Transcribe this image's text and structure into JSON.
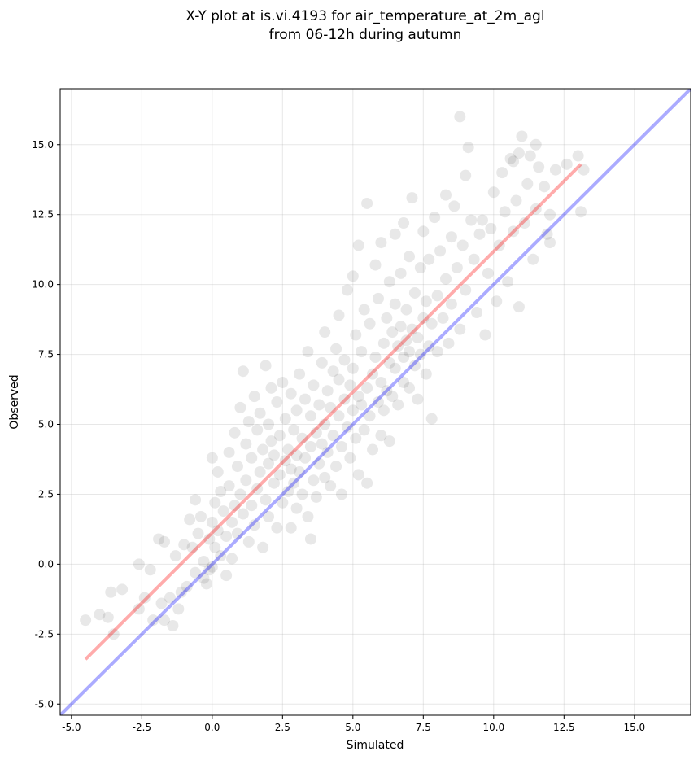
{
  "chart_data": {
    "type": "scatter",
    "title_line1": "X-Y plot at is.vi.4193 for air_temperature_at_2m_agl",
    "title_line2": "from 06-12h during autumn",
    "xlabel": "Simulated",
    "ylabel": "Observed",
    "xlim": [
      -5.4,
      17.0
    ],
    "ylim": [
      -5.4,
      17.0
    ],
    "xticks": [
      -5.0,
      -2.5,
      0.0,
      2.5,
      5.0,
      7.5,
      10.0,
      12.5,
      15.0
    ],
    "xtick_labels": [
      "-5.0",
      "-2.5",
      "0.0",
      "2.5",
      "5.0",
      "7.5",
      "10.0",
      "12.5",
      "15.0"
    ],
    "yticks": [
      -5.0,
      -2.5,
      0.0,
      2.5,
      5.0,
      7.5,
      10.0,
      12.5,
      15.0
    ],
    "ytick_labels": [
      "-5.0",
      "-2.5",
      "0.0",
      "2.5",
      "5.0",
      "7.5",
      "10.0",
      "12.5",
      "15.0"
    ],
    "grid": true,
    "point_color": "#000000",
    "point_alpha": 0.09,
    "lines": [
      {
        "kind": "one-to-one",
        "color": "#0000ff",
        "alpha": 0.33,
        "x": [
          -5.4,
          17.0
        ],
        "y": [
          -5.4,
          17.0
        ]
      },
      {
        "kind": "regression",
        "color": "#ff0000",
        "alpha": 0.33,
        "x": [
          -4.5,
          13.1
        ],
        "y": [
          -3.4,
          14.3
        ]
      }
    ],
    "points": [
      [
        -4.5,
        -2.0
      ],
      [
        -4.0,
        -1.8
      ],
      [
        -3.7,
        -1.9
      ],
      [
        -3.6,
        -1.0
      ],
      [
        -3.5,
        -2.5
      ],
      [
        -3.2,
        -0.9
      ],
      [
        -2.6,
        0.0
      ],
      [
        -2.6,
        -1.6
      ],
      [
        -2.4,
        -1.2
      ],
      [
        -2.2,
        -0.2
      ],
      [
        -2.1,
        -2.0
      ],
      [
        -1.9,
        0.9
      ],
      [
        -1.8,
        -1.4
      ],
      [
        -1.7,
        0.8
      ],
      [
        -1.7,
        -2.0
      ],
      [
        -1.5,
        -1.2
      ],
      [
        -1.4,
        -2.2
      ],
      [
        -1.3,
        0.3
      ],
      [
        -1.2,
        -1.6
      ],
      [
        -1.1,
        -1.0
      ],
      [
        -1.0,
        0.7
      ],
      [
        -0.9,
        -0.8
      ],
      [
        -0.8,
        1.6
      ],
      [
        -0.7,
        0.6
      ],
      [
        -0.6,
        2.3
      ],
      [
        -0.6,
        -0.3
      ],
      [
        -0.5,
        1.1
      ],
      [
        -0.4,
        1.7
      ],
      [
        -0.3,
        0.1
      ],
      [
        -0.3,
        -0.5
      ],
      [
        -0.2,
        -0.7
      ],
      [
        -0.1,
        0.9
      ],
      [
        -0.1,
        -0.2
      ],
      [
        0.0,
        3.8
      ],
      [
        0.0,
        1.5
      ],
      [
        0.0,
        -0.1
      ],
      [
        0.1,
        2.2
      ],
      [
        0.1,
        0.6
      ],
      [
        0.2,
        1.2
      ],
      [
        0.2,
        3.3
      ],
      [
        0.3,
        0.3
      ],
      [
        0.3,
        2.6
      ],
      [
        0.4,
        1.9
      ],
      [
        0.5,
        1.0
      ],
      [
        0.5,
        -0.4
      ],
      [
        0.6,
        4.0
      ],
      [
        0.6,
        2.8
      ],
      [
        0.7,
        1.5
      ],
      [
        0.7,
        0.2
      ],
      [
        0.8,
        2.1
      ],
      [
        0.8,
        4.7
      ],
      [
        0.9,
        3.5
      ],
      [
        0.9,
        1.1
      ],
      [
        1.0,
        2.5
      ],
      [
        1.0,
        5.6
      ],
      [
        1.1,
        6.9
      ],
      [
        1.1,
        1.8
      ],
      [
        1.2,
        3.0
      ],
      [
        1.2,
        4.3
      ],
      [
        1.3,
        0.8
      ],
      [
        1.3,
        5.1
      ],
      [
        1.4,
        2.1
      ],
      [
        1.4,
        3.8
      ],
      [
        1.5,
        6.0
      ],
      [
        1.5,
        1.4
      ],
      [
        1.6,
        4.8
      ],
      [
        1.6,
        2.7
      ],
      [
        1.7,
        3.3
      ],
      [
        1.7,
        5.4
      ],
      [
        1.8,
        0.6
      ],
      [
        1.8,
        4.1
      ],
      [
        1.9,
        2.3
      ],
      [
        1.9,
        7.1
      ],
      [
        2.0,
        3.6
      ],
      [
        2.0,
        5.0
      ],
      [
        2.0,
        1.7
      ],
      [
        2.1,
        4.4
      ],
      [
        2.1,
        6.3
      ],
      [
        2.2,
        2.9
      ],
      [
        2.2,
        3.9
      ],
      [
        2.3,
        5.8
      ],
      [
        2.3,
        1.3
      ],
      [
        2.4,
        4.6
      ],
      [
        2.4,
        3.2
      ],
      [
        2.5,
        6.5
      ],
      [
        2.5,
        2.2
      ],
      [
        2.6,
        3.7
      ],
      [
        2.6,
        5.2
      ],
      [
        2.7,
        4.1
      ],
      [
        2.7,
        2.6
      ],
      [
        2.8,
        3.4
      ],
      [
        2.8,
        6.1
      ],
      [
        2.8,
        1.3
      ],
      [
        2.9,
        4.8
      ],
      [
        2.9,
        2.9
      ],
      [
        3.0,
        3.9
      ],
      [
        3.0,
        5.5
      ],
      [
        3.0,
        2.0
      ],
      [
        3.1,
        6.8
      ],
      [
        3.1,
        3.3
      ],
      [
        3.2,
        4.5
      ],
      [
        3.2,
        2.5
      ],
      [
        3.3,
        5.9
      ],
      [
        3.3,
        3.8
      ],
      [
        3.4,
        7.6
      ],
      [
        3.4,
        1.7
      ],
      [
        3.5,
        4.2
      ],
      [
        3.5,
        0.9
      ],
      [
        3.5,
        5.3
      ],
      [
        3.6,
        3.0
      ],
      [
        3.6,
        6.4
      ],
      [
        3.7,
        4.7
      ],
      [
        3.7,
        2.4
      ],
      [
        3.8,
        5.7
      ],
      [
        3.8,
        3.6
      ],
      [
        3.9,
        7.2
      ],
      [
        3.9,
        4.3
      ],
      [
        4.0,
        5.0
      ],
      [
        4.0,
        3.1
      ],
      [
        4.0,
        8.3
      ],
      [
        4.1,
        6.2
      ],
      [
        4.1,
        4.0
      ],
      [
        4.2,
        5.6
      ],
      [
        4.2,
        2.8
      ],
      [
        4.3,
        6.9
      ],
      [
        4.3,
        4.6
      ],
      [
        4.4,
        7.7
      ],
      [
        4.4,
        3.5
      ],
      [
        4.5,
        5.3
      ],
      [
        4.5,
        6.6
      ],
      [
        4.5,
        8.9
      ],
      [
        4.6,
        4.2
      ],
      [
        4.6,
        2.5
      ],
      [
        4.7,
        5.9
      ],
      [
        4.7,
        7.3
      ],
      [
        4.8,
        4.9
      ],
      [
        4.8,
        9.8
      ],
      [
        4.9,
        6.4
      ],
      [
        4.9,
        3.8
      ],
      [
        5.0,
        5.5
      ],
      [
        5.0,
        7.0
      ],
      [
        5.0,
        10.3
      ],
      [
        5.1,
        4.5
      ],
      [
        5.1,
        8.2
      ],
      [
        5.2,
        6.0
      ],
      [
        5.2,
        3.2
      ],
      [
        5.2,
        11.4
      ],
      [
        5.3,
        5.7
      ],
      [
        5.3,
        7.6
      ],
      [
        5.4,
        4.8
      ],
      [
        5.4,
        9.1
      ],
      [
        5.5,
        6.3
      ],
      [
        5.5,
        12.9
      ],
      [
        5.5,
        2.9
      ],
      [
        5.6,
        5.3
      ],
      [
        5.6,
        8.6
      ],
      [
        5.7,
        6.8
      ],
      [
        5.7,
        4.1
      ],
      [
        5.8,
        7.4
      ],
      [
        5.8,
        10.7
      ],
      [
        5.9,
        5.8
      ],
      [
        5.9,
        9.5
      ],
      [
        6.0,
        6.5
      ],
      [
        6.0,
        4.6
      ],
      [
        6.0,
        11.5
      ],
      [
        6.1,
        7.9
      ],
      [
        6.1,
        5.5
      ],
      [
        6.2,
        8.8
      ],
      [
        6.2,
        6.2
      ],
      [
        6.3,
        7.2
      ],
      [
        6.3,
        10.1
      ],
      [
        6.3,
        4.4
      ],
      [
        6.4,
        8.3
      ],
      [
        6.4,
        6.0
      ],
      [
        6.5,
        9.3
      ],
      [
        6.5,
        11.8
      ],
      [
        6.5,
        7.0
      ],
      [
        6.6,
        7.8
      ],
      [
        6.6,
        5.7
      ],
      [
        6.7,
        8.5
      ],
      [
        6.7,
        10.4
      ],
      [
        6.8,
        7.4
      ],
      [
        6.8,
        6.5
      ],
      [
        6.8,
        12.2
      ],
      [
        6.9,
        8.0
      ],
      [
        6.9,
        9.1
      ],
      [
        7.0,
        7.6
      ],
      [
        7.0,
        6.3
      ],
      [
        7.0,
        11.0
      ],
      [
        7.1,
        8.4
      ],
      [
        7.1,
        13.1
      ],
      [
        7.2,
        7.1
      ],
      [
        7.2,
        9.7
      ],
      [
        7.3,
        8.1
      ],
      [
        7.3,
        5.9
      ],
      [
        7.4,
        10.6
      ],
      [
        7.4,
        7.5
      ],
      [
        7.5,
        8.8
      ],
      [
        7.5,
        11.9
      ],
      [
        7.6,
        6.8
      ],
      [
        7.6,
        9.4
      ],
      [
        7.7,
        7.8
      ],
      [
        7.7,
        10.9
      ],
      [
        7.8,
        5.2
      ],
      [
        7.8,
        8.6
      ],
      [
        7.9,
        12.4
      ],
      [
        8.0,
        9.6
      ],
      [
        8.0,
        7.6
      ],
      [
        8.1,
        11.2
      ],
      [
        8.2,
        8.8
      ],
      [
        8.3,
        13.2
      ],
      [
        8.3,
        10.2
      ],
      [
        8.4,
        7.9
      ],
      [
        8.5,
        11.7
      ],
      [
        8.5,
        9.3
      ],
      [
        8.6,
        12.8
      ],
      [
        8.7,
        10.6
      ],
      [
        8.8,
        16.0
      ],
      [
        8.8,
        8.4
      ],
      [
        8.9,
        11.4
      ],
      [
        9.0,
        13.9
      ],
      [
        9.0,
        9.8
      ],
      [
        9.1,
        14.9
      ],
      [
        9.2,
        12.3
      ],
      [
        9.3,
        10.9
      ],
      [
        9.4,
        9.0
      ],
      [
        9.5,
        11.8
      ],
      [
        9.6,
        12.3
      ],
      [
        9.7,
        8.2
      ],
      [
        9.8,
        10.4
      ],
      [
        9.9,
        12.0
      ],
      [
        10.0,
        13.3
      ],
      [
        10.1,
        9.4
      ],
      [
        10.2,
        11.4
      ],
      [
        10.3,
        14.0
      ],
      [
        10.4,
        12.6
      ],
      [
        10.5,
        10.1
      ],
      [
        10.6,
        14.5
      ],
      [
        10.7,
        11.9
      ],
      [
        10.8,
        13.0
      ],
      [
        10.9,
        14.7
      ],
      [
        11.0,
        15.3
      ],
      [
        11.1,
        12.2
      ],
      [
        11.2,
        13.6
      ],
      [
        11.3,
        14.6
      ],
      [
        11.4,
        10.9
      ],
      [
        11.5,
        12.7
      ],
      [
        11.6,
        14.2
      ],
      [
        11.8,
        13.5
      ],
      [
        11.9,
        11.8
      ],
      [
        12.0,
        12.5
      ],
      [
        12.2,
        14.1
      ],
      [
        12.6,
        14.3
      ],
      [
        13.0,
        14.6
      ],
      [
        13.1,
        12.6
      ],
      [
        13.2,
        14.1
      ],
      [
        11.5,
        15.0
      ],
      [
        10.7,
        14.4
      ],
      [
        10.9,
        9.2
      ],
      [
        12.0,
        11.5
      ]
    ]
  }
}
